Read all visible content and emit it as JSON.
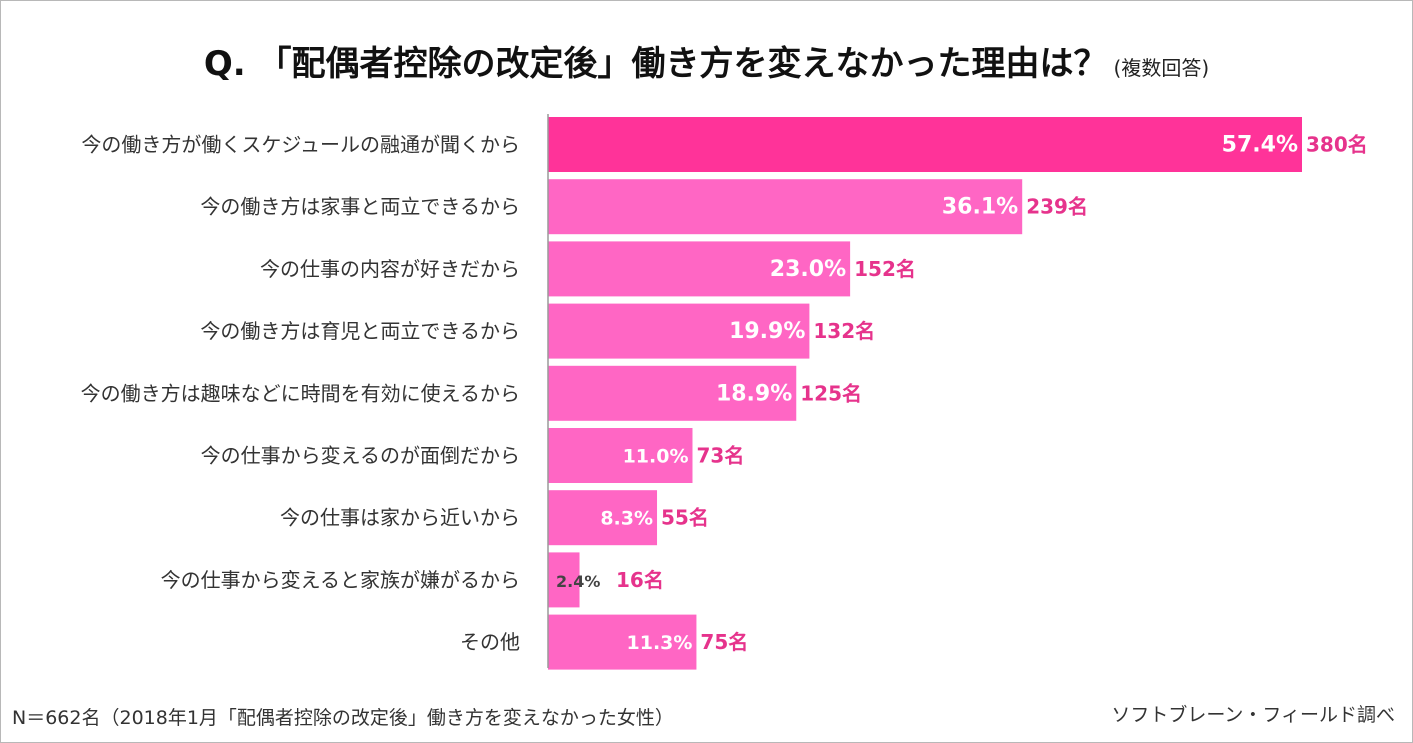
{
  "title": "Q. 「配偶者控除の改定後」働き方を変えなかった理由は？",
  "subtitle": "(複数回答)",
  "footer": {
    "note": "N＝662名（2018年1月「配偶者控除の改定後」働き方を変えなかった女性）",
    "source": "ソフトブレーン・フィールド調べ"
  },
  "colors": {
    "top_bar": "#ff3399",
    "bar": "#ff66c4",
    "count_label": "#e6338c",
    "pct_inside": "#ffffff",
    "pct_small": "#444444",
    "axis": "#9a9a9a"
  },
  "chart_data": {
    "type": "bar",
    "orientation": "horizontal",
    "title": "Q. 「配偶者控除の改定後」働き方を変えなかった理由は？",
    "xlim": [
      0,
      60
    ],
    "grid": false,
    "categories": [
      "今の働き方が働くスケジュールの融通が聞くから",
      "今の働き方は家事と両立できるから",
      "今の仕事の内容が好きだから",
      "今の働き方は育児と両立できるから",
      "今の働き方は趣味などに時間を有効に使えるから",
      "今の仕事から変えるのが面倒だから",
      "今の仕事は家から近いから",
      "今の仕事から変えると家族が嫌がるから",
      "その他"
    ],
    "values": [
      57.4,
      36.1,
      23.0,
      19.9,
      18.9,
      11.0,
      8.3,
      2.4,
      11.3
    ],
    "percent_labels": [
      "57.4%",
      "36.1%",
      "23.0%",
      "19.9%",
      "18.9%",
      "11.0%",
      "8.3%",
      "2.4%",
      "11.3%"
    ],
    "count_labels": [
      "380名",
      "239名",
      "152名",
      "132名",
      "125名",
      "73名",
      "55名",
      "16名",
      "75名"
    ]
  }
}
